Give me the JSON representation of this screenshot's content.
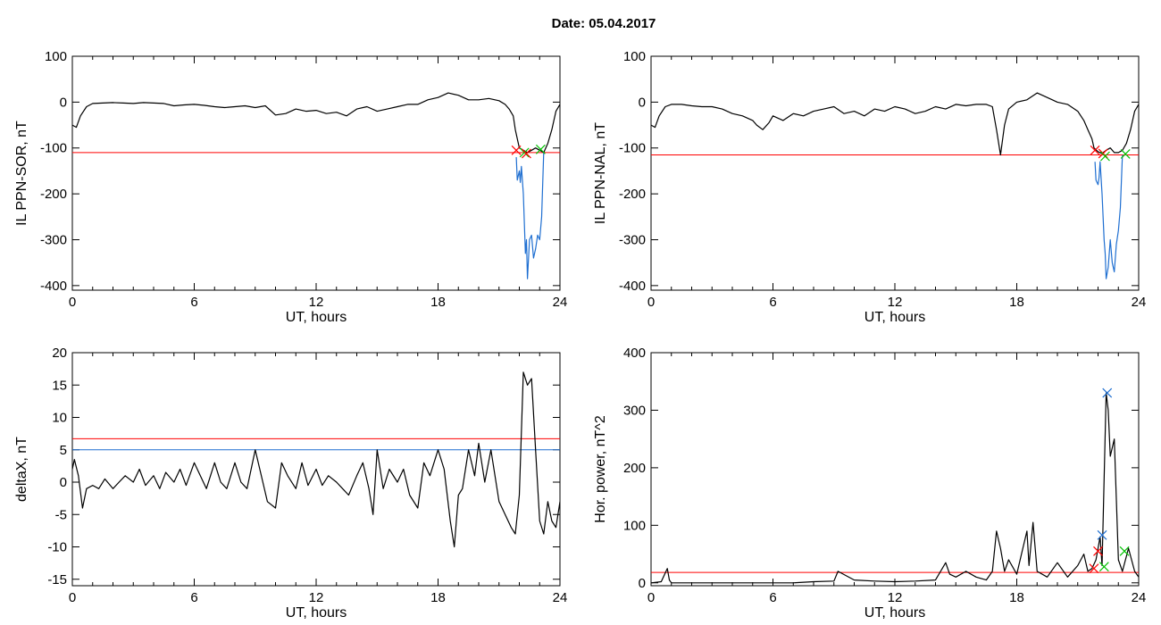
{
  "title": "Date:  05.04.2017",
  "chart_data": [
    {
      "type": "line",
      "name": "panel-sor",
      "ylabel": "IL PPN-SOR, nT",
      "xlabel": "UT, hours",
      "xlim": [
        0,
        24
      ],
      "ylim": [
        -410,
        100
      ],
      "xticks": [
        0,
        6,
        12,
        18,
        24
      ],
      "yticks": [
        100,
        0,
        -100,
        -200,
        -300,
        -400
      ],
      "hlines": [
        {
          "y": -110,
          "color": "#ff0000"
        }
      ],
      "series": [
        {
          "color": "#000000",
          "x": [
            0,
            0.2,
            0.4,
            0.7,
            1,
            1.5,
            2,
            2.5,
            3,
            3.5,
            4,
            4.5,
            5,
            5.5,
            6,
            6.5,
            7,
            7.5,
            8,
            8.5,
            9,
            9.5,
            10,
            10.5,
            11,
            11.5,
            12,
            12.5,
            13,
            13.5,
            14,
            14.5,
            15,
            15.5,
            16,
            16.5,
            17,
            17.5,
            18,
            18.5,
            19,
            19.5,
            20,
            20.5,
            21,
            21.3,
            21.5,
            21.7,
            21.8,
            22.0,
            22.2,
            22.4,
            22.6,
            22.8,
            23.0,
            23.2,
            23.4,
            23.6,
            23.8,
            24
          ],
          "values": [
            -50,
            -55,
            -30,
            -10,
            -3,
            -2,
            -1,
            -2,
            -3,
            -1,
            -2,
            -3,
            -8,
            -6,
            -5,
            -7,
            -10,
            -12,
            -10,
            -8,
            -12,
            -8,
            -28,
            -25,
            -15,
            -20,
            -18,
            -25,
            -22,
            -30,
            -15,
            -10,
            -20,
            -15,
            -10,
            -5,
            -5,
            5,
            10,
            20,
            15,
            5,
            5,
            8,
            3,
            -5,
            -15,
            -30,
            -60,
            -100,
            -105,
            -110,
            -105,
            -100,
            -105,
            -110,
            -90,
            -60,
            -20,
            -5
          ]
        },
        {
          "color": "#1f6fd1",
          "x": [
            21.85,
            21.9,
            22.0,
            22.05,
            22.1,
            22.2,
            22.3,
            22.35,
            22.4,
            22.5,
            22.6,
            22.7,
            22.8,
            22.9,
            23.0,
            23.1,
            23.2
          ],
          "values": [
            -120,
            -170,
            -150,
            -175,
            -140,
            -200,
            -330,
            -300,
            -385,
            -300,
            -290,
            -340,
            -320,
            -290,
            -300,
            -250,
            -110
          ]
        }
      ],
      "markers": [
        {
          "x": 21.85,
          "y": -105,
          "color": "#ff0000"
        },
        {
          "x": 22.25,
          "y": -110,
          "color": "#00c000"
        },
        {
          "x": 22.35,
          "y": -112,
          "color": "#ff0000"
        },
        {
          "x": 23.05,
          "y": -103,
          "color": "#00c000"
        }
      ]
    },
    {
      "type": "line",
      "name": "panel-nal",
      "ylabel": "IL PPN-NAL, nT",
      "xlabel": "UT, hours",
      "xlim": [
        0,
        24
      ],
      "ylim": [
        -410,
        100
      ],
      "xticks": [
        0,
        6,
        12,
        18,
        24
      ],
      "yticks": [
        100,
        0,
        -100,
        -200,
        -300,
        -400
      ],
      "hlines": [
        {
          "y": -115,
          "color": "#ff0000"
        }
      ],
      "series": [
        {
          "color": "#000000",
          "x": [
            0,
            0.2,
            0.4,
            0.7,
            1,
            1.5,
            2,
            2.5,
            3,
            3.5,
            4,
            4.5,
            5,
            5.2,
            5.5,
            5.8,
            6,
            6.5,
            7,
            7.5,
            8,
            8.5,
            9,
            9.5,
            10,
            10.5,
            11,
            11.5,
            12,
            12.5,
            13,
            13.5,
            14,
            14.5,
            15,
            15.5,
            16,
            16.5,
            16.8,
            17.0,
            17.2,
            17.4,
            17.6,
            18,
            18.5,
            19,
            19.5,
            20,
            20.5,
            21,
            21.3,
            21.5,
            21.7,
            21.8,
            22.0,
            22.2,
            22.4,
            22.6,
            22.8,
            23.0,
            23.2,
            23.4,
            23.6,
            23.8,
            24
          ],
          "values": [
            -50,
            -55,
            -30,
            -10,
            -5,
            -5,
            -8,
            -10,
            -10,
            -15,
            -25,
            -30,
            -40,
            -50,
            -60,
            -45,
            -30,
            -40,
            -25,
            -30,
            -20,
            -15,
            -10,
            -25,
            -20,
            -30,
            -15,
            -20,
            -10,
            -15,
            -25,
            -20,
            -10,
            -15,
            -5,
            -8,
            -5,
            -5,
            -10,
            -60,
            -115,
            -50,
            -15,
            0,
            5,
            20,
            10,
            0,
            -5,
            -20,
            -40,
            -60,
            -80,
            -100,
            -108,
            -112,
            -105,
            -100,
            -110,
            -110,
            -105,
            -90,
            -60,
            -20,
            -5
          ]
        },
        {
          "color": "#1f6fd1",
          "x": [
            21.85,
            21.9,
            22.0,
            22.05,
            22.1,
            22.2,
            22.3,
            22.35,
            22.4,
            22.5,
            22.6,
            22.7,
            22.8,
            22.9,
            23.0,
            23.1,
            23.2
          ],
          "values": [
            -130,
            -170,
            -180,
            -165,
            -130,
            -200,
            -300,
            -330,
            -385,
            -360,
            -300,
            -350,
            -370,
            -310,
            -280,
            -230,
            -115
          ]
        }
      ],
      "markers": [
        {
          "x": 21.85,
          "y": -105,
          "color": "#ff0000"
        },
        {
          "x": 22.25,
          "y": -112,
          "color": "#ff0000"
        },
        {
          "x": 22.35,
          "y": -118,
          "color": "#00c000"
        },
        {
          "x": 23.35,
          "y": -113,
          "color": "#00c000"
        }
      ]
    },
    {
      "type": "line",
      "name": "panel-deltax",
      "ylabel": "deltaX, nT",
      "xlabel": "UT, hours",
      "xlim": [
        0,
        24
      ],
      "ylim": [
        -16,
        20
      ],
      "xticks": [
        0,
        6,
        12,
        18,
        24
      ],
      "yticks": [
        20,
        15,
        10,
        5,
        0,
        -5,
        -10,
        -15
      ],
      "hlines": [
        {
          "y": 6.7,
          "color": "#ff0000"
        },
        {
          "y": 5.0,
          "color": "#1f6fd1"
        }
      ],
      "series": [
        {
          "color": "#000000",
          "x": [
            0,
            0.1,
            0.3,
            0.5,
            0.7,
            1,
            1.3,
            1.6,
            2,
            2.3,
            2.6,
            3,
            3.3,
            3.6,
            4,
            4.3,
            4.6,
            5,
            5.3,
            5.6,
            6,
            6.3,
            6.6,
            7,
            7.3,
            7.6,
            8,
            8.3,
            8.6,
            9,
            9.3,
            9.6,
            10,
            10.3,
            10.6,
            11,
            11.3,
            11.6,
            12,
            12.3,
            12.6,
            13,
            13.3,
            13.6,
            14,
            14.3,
            14.6,
            14.8,
            15,
            15.3,
            15.6,
            16,
            16.3,
            16.6,
            17,
            17.3,
            17.6,
            18,
            18.3,
            18.6,
            18.8,
            19,
            19.2,
            19.5,
            19.8,
            20,
            20.3,
            20.6,
            21,
            21.3,
            21.6,
            21.8,
            22,
            22.2,
            22.4,
            22.6,
            22.8,
            23,
            23.2,
            23.4,
            23.6,
            23.8,
            24
          ],
          "values": [
            2,
            3.5,
            1,
            -4,
            -1,
            -0.5,
            -1,
            0.5,
            -1,
            0,
            1,
            0,
            2,
            -0.5,
            1,
            -1,
            1.5,
            0,
            2,
            -0.5,
            3,
            1,
            -1,
            3,
            0,
            -1,
            3,
            0,
            -1,
            5,
            1,
            -3,
            -4,
            3,
            1,
            -1,
            3,
            -0.5,
            2,
            -0.5,
            1,
            0,
            -1,
            -2,
            1,
            3,
            -1,
            -5,
            5,
            -1,
            2,
            0,
            2,
            -2,
            -4,
            3,
            1,
            5,
            2,
            -6,
            -10,
            -2,
            -1,
            5,
            1,
            6,
            0,
            5,
            -3,
            -5,
            -7,
            -8,
            -2,
            17,
            15,
            16,
            5,
            -6,
            -8,
            -3,
            -6,
            -7,
            -3
          ]
        }
      ],
      "markers": []
    },
    {
      "type": "line",
      "name": "panel-power",
      "ylabel": "Hor. power, nT^2",
      "xlabel": "UT, hours",
      "xlim": [
        0,
        24
      ],
      "ylim": [
        -5,
        400
      ],
      "xticks": [
        0,
        6,
        12,
        18,
        24
      ],
      "yticks": [
        400,
        300,
        200,
        100,
        0
      ],
      "hlines": [
        {
          "y": 18,
          "color": "#ff0000"
        }
      ],
      "series": [
        {
          "color": "#000000",
          "x": [
            0,
            0.5,
            0.8,
            0.9,
            1,
            2,
            3,
            4,
            5,
            6,
            7,
            8,
            9,
            9.2,
            10,
            11,
            12,
            13,
            14,
            14.5,
            14.7,
            15,
            15.5,
            16,
            16.5,
            16.8,
            17.0,
            17.2,
            17.4,
            17.6,
            18,
            18.3,
            18.5,
            18.6,
            18.8,
            19,
            19.5,
            20,
            20.5,
            21,
            21.3,
            21.5,
            21.7,
            21.9,
            22.0,
            22.1,
            22.2,
            22.4,
            22.5,
            22.6,
            22.8,
            23.0,
            23.2,
            23.5,
            23.8,
            24
          ],
          "values": [
            0,
            2,
            25,
            5,
            0,
            0,
            0,
            0,
            0,
            0,
            0,
            2,
            3,
            20,
            5,
            3,
            2,
            3,
            5,
            35,
            15,
            10,
            20,
            10,
            5,
            20,
            90,
            60,
            20,
            40,
            15,
            60,
            90,
            30,
            105,
            20,
            10,
            35,
            10,
            30,
            50,
            20,
            25,
            40,
            60,
            80,
            30,
            330,
            300,
            220,
            250,
            40,
            20,
            60,
            20,
            10
          ]
        }
      ],
      "markers": [
        {
          "x": 22.45,
          "y": 330,
          "color": "#1f6fd1"
        },
        {
          "x": 22.2,
          "y": 83,
          "color": "#1f6fd1"
        },
        {
          "x": 22.0,
          "y": 55,
          "color": "#ff0000"
        },
        {
          "x": 21.8,
          "y": 25,
          "color": "#ff0000"
        },
        {
          "x": 22.3,
          "y": 28,
          "color": "#00c000"
        },
        {
          "x": 23.3,
          "y": 55,
          "color": "#00c000"
        }
      ]
    }
  ]
}
